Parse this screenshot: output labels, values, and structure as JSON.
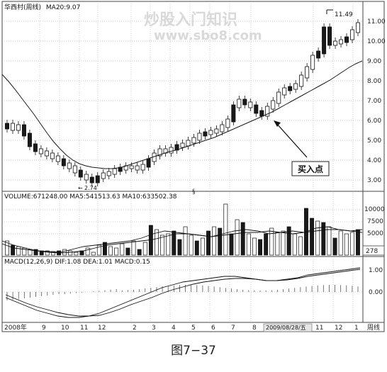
{
  "header": {
    "title": "华西村(周线)",
    "ma20": "MA20:9.07"
  },
  "watermark": {
    "line1": "炒股入门知识",
    "line2": "www.sbo8.com"
  },
  "price_panel": {
    "y_ticks": [
      "11.00",
      "10.00",
      "9.00",
      "8.00",
      "7.00",
      "6.00",
      "5.00",
      "4.00",
      "3.00"
    ],
    "high_label": "11.49",
    "low_label": "2.74",
    "annotation": "买入点",
    "marker": "§"
  },
  "volume_panel": {
    "header": "VOLUME:671248.00  MA5:541513.63  MA10:633502.38",
    "y_ticks": [
      "10000",
      "7500",
      "5000"
    ],
    "corner_value": "278"
  },
  "macd_panel": {
    "header": "MACD(12,26,9)  DIF:1.08  DEA:1.01  MACD:0.15",
    "y_ticks": [
      "1.00",
      "0.00"
    ]
  },
  "x_axis": {
    "labels": [
      "2008年",
      "9",
      "10",
      "11",
      "12",
      "2",
      "3",
      "4",
      "5",
      "6",
      "7",
      "8",
      "2009/08/28/五",
      "11",
      "12",
      "1"
    ],
    "period_label": "周线"
  },
  "caption": "图7−37",
  "colors": {
    "up_candle": "#ffffff",
    "down_candle": "#1a1a1a",
    "line": "#1a1a1a",
    "grid": "#9a9a9a"
  }
}
